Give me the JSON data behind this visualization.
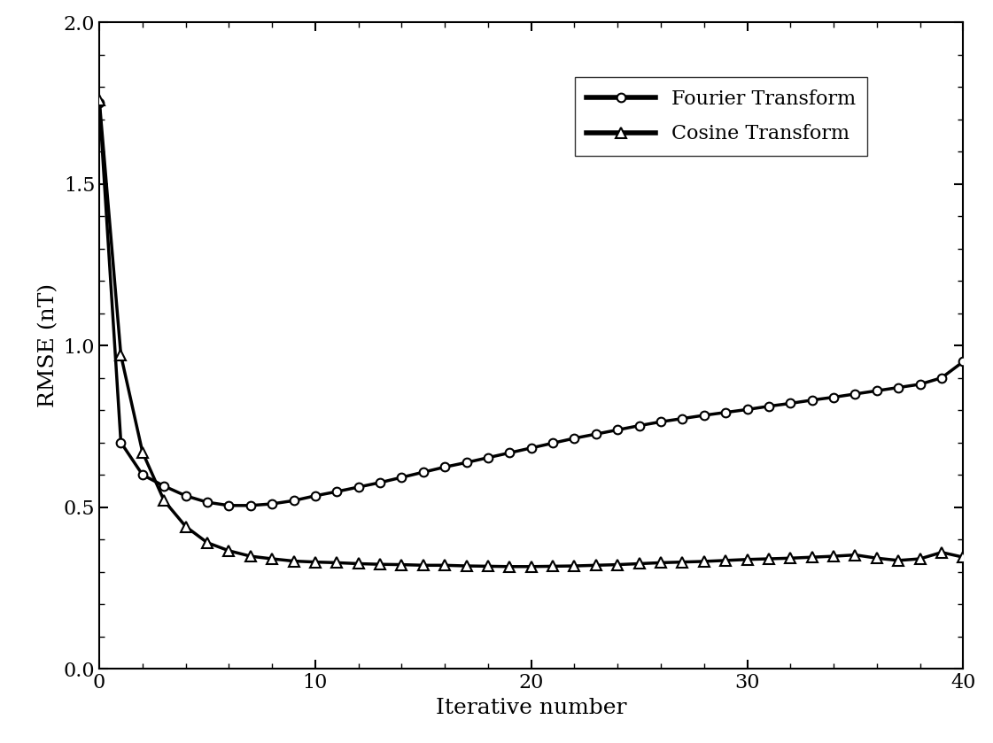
{
  "xlabel": "Iterative number",
  "ylabel": "RMSE (nT)",
  "xlim": [
    0,
    40
  ],
  "ylim": [
    0.0,
    2.0
  ],
  "xticks": [
    0,
    10,
    20,
    30,
    40
  ],
  "yticks": [
    0.0,
    0.5,
    1.0,
    1.5,
    2.0
  ],
  "legend_labels": [
    "Fourier Transform",
    "Cosine Transform"
  ],
  "line_color": "#000000",
  "linewidth": 2.5,
  "markersize_circle": 7,
  "markersize_triangle": 8,
  "background_color": "#ffffff",
  "label_fontsize": 18,
  "tick_fontsize": 16,
  "legend_fontsize": 16,
  "fourier_y": [
    1.75,
    0.7,
    0.6,
    0.565,
    0.535,
    0.515,
    0.505,
    0.505,
    0.51,
    0.52,
    0.535,
    0.548,
    0.562,
    0.576,
    0.592,
    0.608,
    0.624,
    0.638,
    0.653,
    0.668,
    0.683,
    0.698,
    0.713,
    0.726,
    0.739,
    0.752,
    0.764,
    0.774,
    0.784,
    0.793,
    0.802,
    0.812,
    0.821,
    0.831,
    0.84,
    0.85,
    0.86,
    0.87,
    0.88,
    0.9,
    0.95
  ],
  "cosine_y": [
    1.76,
    0.97,
    0.67,
    0.52,
    0.44,
    0.39,
    0.365,
    0.348,
    0.34,
    0.333,
    0.33,
    0.328,
    0.325,
    0.323,
    0.322,
    0.32,
    0.32,
    0.318,
    0.317,
    0.316,
    0.316,
    0.317,
    0.318,
    0.32,
    0.322,
    0.325,
    0.328,
    0.33,
    0.332,
    0.335,
    0.338,
    0.34,
    0.342,
    0.345,
    0.348,
    0.352,
    0.342,
    0.335,
    0.34,
    0.36,
    0.345
  ]
}
